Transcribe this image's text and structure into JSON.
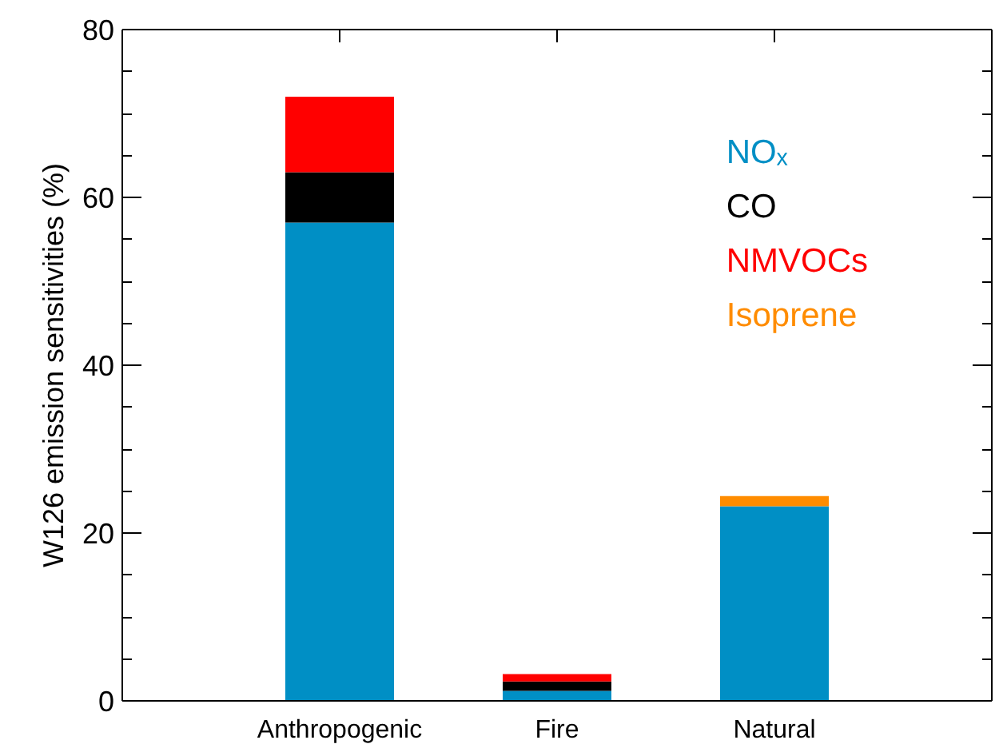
{
  "chart_data": {
    "type": "bar",
    "stacked": true,
    "ylabel": "W126 emission sensitivities (%)",
    "categories": [
      "Anthropogenic",
      "Fire",
      "Natural"
    ],
    "series": [
      {
        "name": "NOₓ",
        "color": "#008fc5",
        "values": [
          57,
          1.2,
          23.2
        ]
      },
      {
        "name": "CO",
        "color": "#000000",
        "values": [
          6,
          1.1,
          0
        ]
      },
      {
        "name": "NMVOCs",
        "color": "#ff0000",
        "values": [
          9,
          0.9,
          0
        ]
      },
      {
        "name": "Isoprene",
        "color": "#ff8c00",
        "values": [
          0,
          0,
          1.2
        ]
      }
    ],
    "ylim": [
      0,
      80
    ],
    "yticks": [
      0,
      20,
      40,
      60,
      80
    ],
    "legend": "top right"
  }
}
